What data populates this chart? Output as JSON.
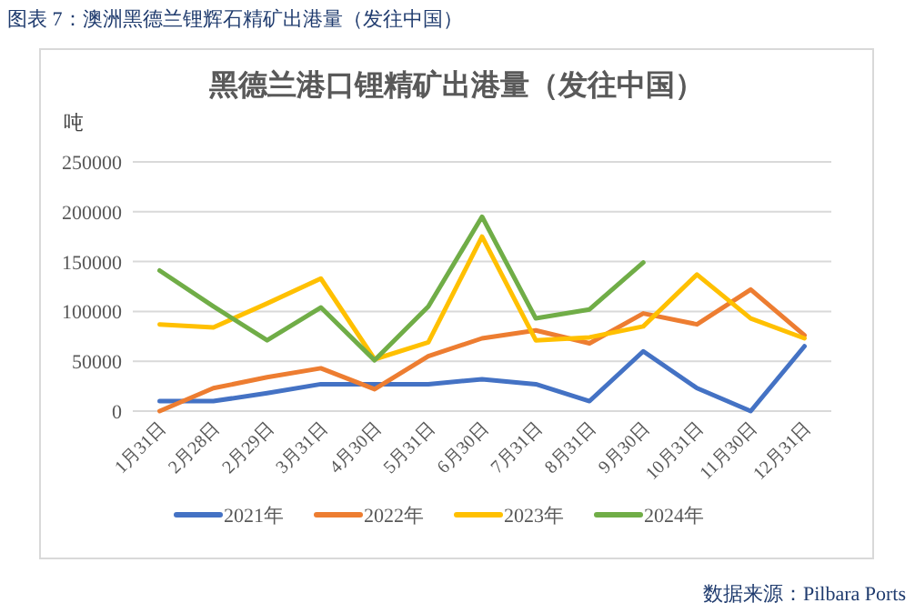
{
  "chart_data": {
    "type": "line",
    "title": "黑德兰港口锂精矿出港量（发往中国）",
    "ylabel": "吨",
    "annotations": [
      "图表 7：澳洲黑德兰锂辉石精矿出港量（发往中国）",
      "数据来源：Pilbara Ports"
    ],
    "categories": [
      "1月31日",
      "2月28日",
      "2月29日",
      "3月31日",
      "4月30日",
      "5月31日",
      "6月30日",
      "7月31日",
      "8月31日",
      "9月30日",
      "10月31日",
      "11月30日",
      "12月31日"
    ],
    "series": [
      {
        "name": "2021年",
        "color": "#4472c4",
        "values": [
          10000,
          10000,
          18000,
          27000,
          27000,
          27000,
          32000,
          27000,
          10000,
          60000,
          23000,
          0,
          65000
        ]
      },
      {
        "name": "2022年",
        "color": "#ed7d31",
        "values": [
          0,
          23000,
          34000,
          43000,
          22000,
          55000,
          73000,
          81000,
          68000,
          98000,
          87000,
          122000,
          76000
        ]
      },
      {
        "name": "2023年",
        "color": "#ffc000",
        "values": [
          87000,
          84000,
          108000,
          133000,
          52000,
          69000,
          175000,
          71000,
          74000,
          85000,
          137000,
          93000,
          73000
        ]
      },
      {
        "name": "2024年",
        "color": "#70ad47",
        "values": [
          141000,
          105000,
          71000,
          104000,
          51000,
          105000,
          195000,
          93000,
          102000,
          149000,
          null,
          null,
          null
        ]
      }
    ],
    "ylim": [
      0,
      250000
    ],
    "yticks": [
      0,
      50000,
      100000,
      150000,
      200000,
      250000
    ],
    "grid": "y",
    "legend": "bottom",
    "marker": "none",
    "line_style": "solid"
  }
}
